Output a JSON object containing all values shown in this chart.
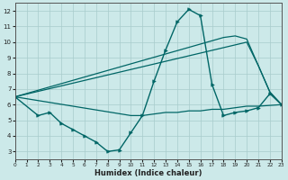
{
  "xlabel": "Humidex (Indice chaleur)",
  "background_color": "#cce9e9",
  "grid_color": "#a8cccc",
  "line_color": "#006666",
  "xlim": [
    0,
    23
  ],
  "ylim": [
    2.5,
    12.5
  ],
  "xticks": [
    0,
    1,
    2,
    3,
    4,
    5,
    6,
    7,
    8,
    9,
    10,
    11,
    12,
    13,
    14,
    15,
    16,
    17,
    18,
    19,
    20,
    21,
    22,
    23
  ],
  "yticks": [
    3,
    4,
    5,
    6,
    7,
    8,
    9,
    10,
    11,
    12
  ],
  "line_main": {
    "x": [
      0,
      2,
      3,
      4,
      5,
      6,
      7,
      8,
      9,
      10,
      11,
      12,
      13,
      14,
      15,
      16,
      17,
      18,
      19,
      20,
      21,
      22,
      23
    ],
    "y": [
      6.5,
      5.3,
      5.5,
      4.8,
      4.4,
      4.0,
      3.6,
      3.0,
      3.1,
      4.2,
      5.3,
      7.5,
      9.5,
      11.3,
      12.1,
      11.7,
      7.3,
      5.3,
      5.5,
      5.6,
      5.8,
      6.7,
      6.0
    ]
  },
  "line_flat": {
    "x": [
      0,
      10,
      11,
      12,
      13,
      14,
      15,
      16,
      17,
      18,
      19,
      20,
      21,
      22,
      23
    ],
    "y": [
      6.5,
      5.3,
      5.3,
      5.4,
      5.5,
      5.5,
      5.6,
      5.6,
      5.7,
      5.7,
      5.8,
      5.9,
      5.9,
      5.95,
      6.0
    ]
  },
  "line_diag1": {
    "x": [
      0,
      20,
      21,
      22,
      23
    ],
    "y": [
      6.5,
      10.0,
      8.5,
      6.8,
      6.0
    ]
  },
  "line_diag2": {
    "x": [
      0,
      18,
      19,
      20,
      21,
      22,
      23
    ],
    "y": [
      6.5,
      10.3,
      10.4,
      10.2,
      8.5,
      6.8,
      6.0
    ]
  }
}
